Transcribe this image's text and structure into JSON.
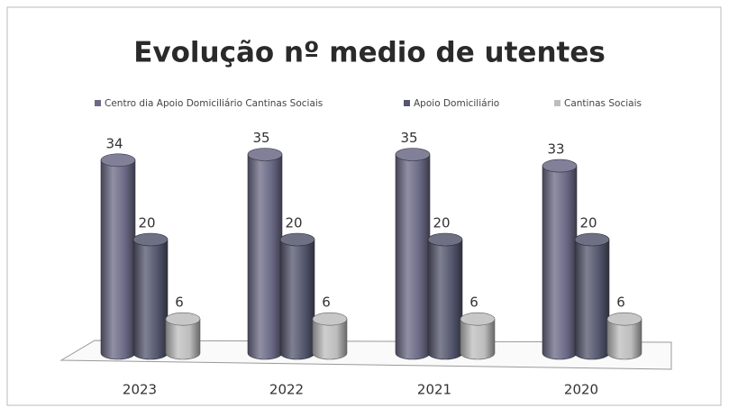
{
  "chart_data": {
    "type": "bar3d",
    "title": "Evolução nº medio de utentes",
    "categories": [
      "2023",
      "2022",
      "2021",
      "2020"
    ],
    "series": [
      {
        "name": "Centro dia Apoio Domiciliário Cantinas Sociais",
        "color": "#6b6a86",
        "values": [
          34,
          35,
          35,
          33
        ]
      },
      {
        "name": "Apoio Domiciliário",
        "color": "#54576e",
        "values": [
          20,
          20,
          20,
          20
        ]
      },
      {
        "name": "Cantinas Sociais",
        "color": "#bdbdbd",
        "values": [
          6,
          6,
          6,
          6
        ]
      }
    ],
    "legend": "top",
    "data_labels": true
  }
}
